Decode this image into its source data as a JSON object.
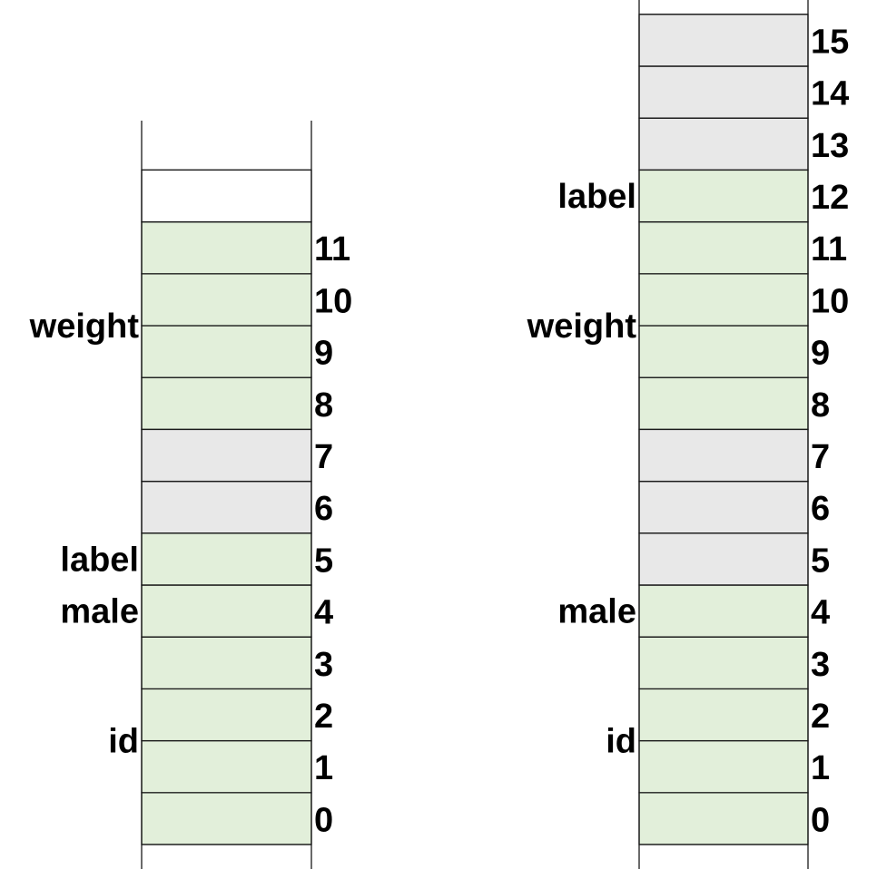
{
  "colors": {
    "field": "#e2efda",
    "padding": "#e8e8e8",
    "empty": "#ffffff",
    "line": "#1a1a1a"
  },
  "layouts": [
    {
      "name": "layout-left",
      "cells": [
        {
          "offset": "0",
          "kind": "field"
        },
        {
          "offset": "1",
          "kind": "field"
        },
        {
          "offset": "2",
          "kind": "field"
        },
        {
          "offset": "3",
          "kind": "field"
        },
        {
          "offset": "4",
          "kind": "field"
        },
        {
          "offset": "5",
          "kind": "field"
        },
        {
          "offset": "6",
          "kind": "padding"
        },
        {
          "offset": "7",
          "kind": "padding"
        },
        {
          "offset": "8",
          "kind": "field"
        },
        {
          "offset": "9",
          "kind": "field"
        },
        {
          "offset": "10",
          "kind": "field"
        },
        {
          "offset": "11",
          "kind": "field"
        },
        {
          "offset": "",
          "kind": "empty"
        }
      ],
      "fields": [
        {
          "label": "id",
          "start": 0,
          "size": 4
        },
        {
          "label": "male",
          "start": 4,
          "size": 1
        },
        {
          "label": "label",
          "start": 5,
          "size": 1
        },
        {
          "label": "weight",
          "start": 8,
          "size": 4
        }
      ]
    },
    {
      "name": "layout-right",
      "cells": [
        {
          "offset": "0",
          "kind": "field"
        },
        {
          "offset": "1",
          "kind": "field"
        },
        {
          "offset": "2",
          "kind": "field"
        },
        {
          "offset": "3",
          "kind": "field"
        },
        {
          "offset": "4",
          "kind": "field"
        },
        {
          "offset": "5",
          "kind": "padding"
        },
        {
          "offset": "6",
          "kind": "padding"
        },
        {
          "offset": "7",
          "kind": "padding"
        },
        {
          "offset": "8",
          "kind": "field"
        },
        {
          "offset": "9",
          "kind": "field"
        },
        {
          "offset": "10",
          "kind": "field"
        },
        {
          "offset": "11",
          "kind": "field"
        },
        {
          "offset": "12",
          "kind": "field"
        },
        {
          "offset": "13",
          "kind": "padding"
        },
        {
          "offset": "14",
          "kind": "padding"
        },
        {
          "offset": "15",
          "kind": "padding"
        }
      ],
      "fields": [
        {
          "label": "id",
          "start": 0,
          "size": 4
        },
        {
          "label": "male",
          "start": 4,
          "size": 1
        },
        {
          "label": "weight",
          "start": 8,
          "size": 4
        },
        {
          "label": "label",
          "start": 12,
          "size": 1
        }
      ]
    }
  ]
}
